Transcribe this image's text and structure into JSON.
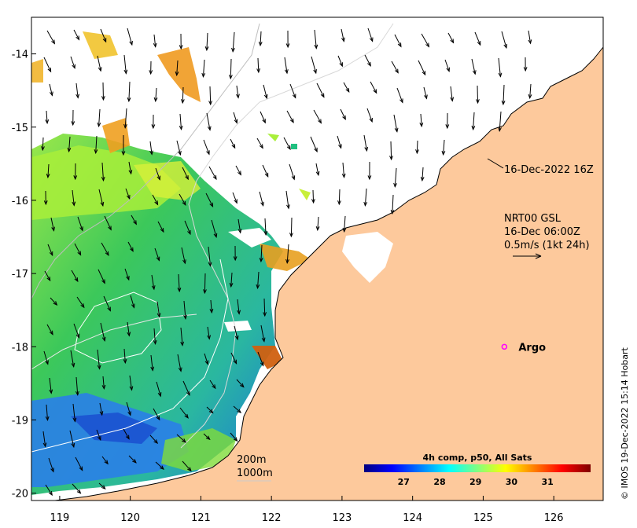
{
  "map": {
    "lon_ticks": [
      "119",
      "120",
      "121",
      "122",
      "123",
      "124",
      "125",
      "126"
    ],
    "lat_ticks": [
      "-14",
      "-15",
      "-16",
      "-17",
      "-18",
      "-19",
      "-20"
    ],
    "lon_range": [
      118.6,
      126.7
    ],
    "lat_range": [
      -20.1,
      -13.5
    ]
  },
  "annotations": {
    "timestamp": "16-Dec-2022 16Z",
    "current_source": "NRT00 GSL",
    "current_time": "16-Dec 06:00Z",
    "scale_label": "0.5m/s (1kt 24h)",
    "argo_label": "Argo",
    "contour_200": "200m",
    "contour_1000": "1000m",
    "credit": "© IMOS 19-Dec-2022 15:14 Hobart"
  },
  "colorbar": {
    "title": "4h comp, p50, All Sats",
    "ticks": [
      "27",
      "28",
      "29",
      "30",
      "31"
    ],
    "tick_values": [
      27,
      28,
      29,
      30,
      31
    ],
    "range": [
      25.9,
      32.2
    ],
    "colors": [
      "#00007f",
      "#0000ff",
      "#0080ff",
      "#00ffff",
      "#80ff80",
      "#ffff00",
      "#ff8000",
      "#ff0000",
      "#7f0000"
    ]
  },
  "argo_float": {
    "lon": 125.3,
    "lat": -18.0,
    "color": "#ff00ff"
  },
  "land_color": "#fdc99c"
}
